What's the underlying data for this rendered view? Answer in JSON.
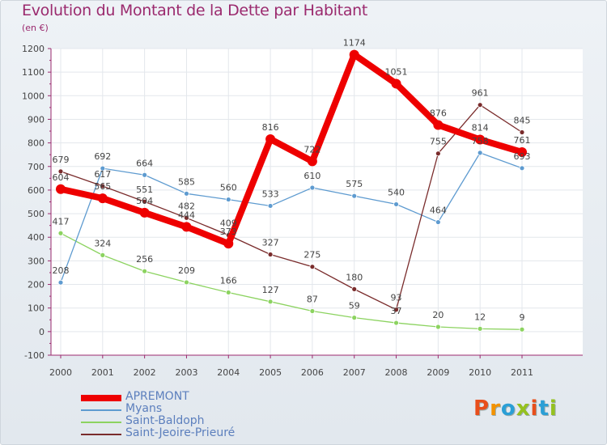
{
  "header": {
    "title": "Evolution du Montant de la Dette par Habitant",
    "subtitle": "(en €)"
  },
  "logo": {
    "text": "Proxiti",
    "colors": [
      "#e84e1b",
      "#f39200",
      "#2a9fd6",
      "#95c11f",
      "#e84e1b",
      "#2a9fd6",
      "#95c11f"
    ]
  },
  "chart_data": {
    "type": "line",
    "title": "Evolution du Montant de la Dette par Habitant",
    "ylabel": "(en €)",
    "xlabel": "",
    "ylim": [
      -100,
      1200
    ],
    "yticks": [
      -100,
      0,
      100,
      200,
      300,
      400,
      500,
      600,
      700,
      800,
      900,
      1000,
      1100,
      1200
    ],
    "categories": [
      "2000",
      "2001",
      "2002",
      "2003",
      "2004",
      "2005",
      "2006",
      "2007",
      "2008",
      "2009",
      "2010",
      "2011"
    ],
    "grid": true,
    "series": [
      {
        "name": "APREMONT",
        "color": "#ee0000",
        "values": [
          604,
          565,
          504,
          444,
          373,
          816,
          722,
          1174,
          1051,
          876,
          814,
          761
        ],
        "labels": [
          "604",
          "565",
          "504",
          "444",
          "373",
          "816",
          "722",
          "1174",
          "1051",
          "876",
          "814",
          "761"
        ]
      },
      {
        "name": "Myans",
        "color": "#5e9bd0",
        "values": [
          208,
          692,
          664,
          585,
          560,
          533,
          610,
          575,
          540,
          464,
          758,
          693
        ],
        "labels": [
          "208",
          "692",
          "664",
          "585",
          "560",
          "533",
          "610",
          "575",
          "540",
          "464",
          "758",
          "693"
        ]
      },
      {
        "name": "Saint-Baldoph",
        "color": "#8cd360",
        "values": [
          417,
          324,
          256,
          209,
          166,
          127,
          87,
          59,
          37,
          20,
          12,
          9
        ],
        "labels": [
          "417",
          "324",
          "256",
          "209",
          "166",
          "127",
          "87",
          "59",
          "37",
          "20",
          "12",
          "9"
        ]
      },
      {
        "name": "Saint-Jeoire-Prieuré",
        "color": "#7a2c2c",
        "values": [
          679,
          617,
          551,
          482,
          409,
          327,
          275,
          180,
          93,
          755,
          961,
          845
        ],
        "labels": [
          "679",
          "617",
          "551",
          "482",
          "409",
          "327",
          "275",
          "180",
          "93",
          "755",
          "961",
          "845"
        ]
      }
    ]
  }
}
